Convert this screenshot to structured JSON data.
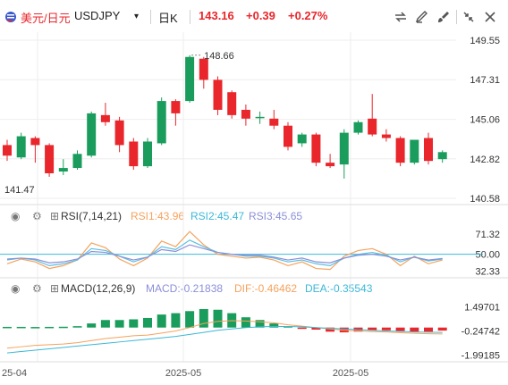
{
  "toolbar": {
    "instrument_name": "美元/日元",
    "symbol": "USDJPY",
    "timeframe": "日K",
    "last_price": "143.16",
    "change": "+0.39",
    "change_pct": "+0.27%",
    "icons": [
      "flag-icon",
      "chevron-down-icon",
      "compare-icon",
      "drawing-icon",
      "brush-icon",
      "shrink-icon",
      "close-icon"
    ]
  },
  "colors": {
    "up": "#e8262b",
    "down": "#1a9d5c",
    "rsi1": "#f5a25d",
    "rsi2": "#5bc0de",
    "rsi3": "#8b8fd8",
    "dif": "#f5a25d",
    "dea": "#3bb8d8",
    "grid": "#eeeeee"
  },
  "chart_data": [
    {
      "type": "candlestick",
      "title": "",
      "x_ticks": [
        "25-04",
        "2025-05",
        "2025-05"
      ],
      "y_ticks": [
        "149.55",
        "147.31",
        "145.06",
        "142.82",
        "140.58"
      ],
      "ylim": [
        140.58,
        149.55
      ],
      "annotations": {
        "high_label": "148.66",
        "low_label": "141.47"
      },
      "candles": [
        {
          "o": 143.6,
          "h": 143.9,
          "l": 142.7,
          "c": 143.0
        },
        {
          "o": 142.9,
          "h": 144.3,
          "l": 142.8,
          "c": 144.1
        },
        {
          "o": 144.0,
          "h": 144.1,
          "l": 142.6,
          "c": 143.6
        },
        {
          "o": 143.6,
          "h": 143.7,
          "l": 141.8,
          "c": 142.0
        },
        {
          "o": 142.1,
          "h": 142.8,
          "l": 141.9,
          "c": 142.3
        },
        {
          "o": 142.3,
          "h": 143.3,
          "l": 142.2,
          "c": 143.1
        },
        {
          "o": 143.0,
          "h": 145.5,
          "l": 142.9,
          "c": 145.4
        },
        {
          "o": 145.3,
          "h": 146.0,
          "l": 144.7,
          "c": 144.9
        },
        {
          "o": 145.0,
          "h": 145.2,
          "l": 143.2,
          "c": 143.6
        },
        {
          "o": 143.8,
          "h": 144.0,
          "l": 142.2,
          "c": 142.4
        },
        {
          "o": 142.4,
          "h": 144.0,
          "l": 142.3,
          "c": 143.8
        },
        {
          "o": 143.7,
          "h": 146.3,
          "l": 143.6,
          "c": 146.1
        },
        {
          "o": 146.1,
          "h": 146.2,
          "l": 144.7,
          "c": 145.4
        },
        {
          "o": 146.1,
          "h": 148.7,
          "l": 146.0,
          "c": 148.6
        },
        {
          "o": 148.5,
          "h": 148.6,
          "l": 146.8,
          "c": 147.3
        },
        {
          "o": 147.3,
          "h": 147.5,
          "l": 145.3,
          "c": 145.6
        },
        {
          "o": 146.6,
          "h": 146.7,
          "l": 145.1,
          "c": 145.3
        },
        {
          "o": 145.6,
          "h": 145.9,
          "l": 144.7,
          "c": 145.1
        },
        {
          "o": 145.2,
          "h": 145.5,
          "l": 144.8,
          "c": 145.2
        },
        {
          "o": 145.1,
          "h": 145.6,
          "l": 144.5,
          "c": 144.7
        },
        {
          "o": 144.7,
          "h": 144.9,
          "l": 143.3,
          "c": 143.5
        },
        {
          "o": 143.7,
          "h": 144.3,
          "l": 143.5,
          "c": 144.2
        },
        {
          "o": 144.2,
          "h": 144.3,
          "l": 142.4,
          "c": 142.6
        },
        {
          "o": 142.6,
          "h": 143.1,
          "l": 142.3,
          "c": 142.4
        },
        {
          "o": 142.5,
          "h": 144.5,
          "l": 141.7,
          "c": 144.3
        },
        {
          "o": 144.3,
          "h": 145.0,
          "l": 144.2,
          "c": 144.9
        },
        {
          "o": 145.1,
          "h": 146.5,
          "l": 144.1,
          "c": 144.2
        },
        {
          "o": 144.2,
          "h": 144.5,
          "l": 143.8,
          "c": 144.0
        },
        {
          "o": 144.0,
          "h": 144.1,
          "l": 142.4,
          "c": 142.6
        },
        {
          "o": 142.6,
          "h": 143.9,
          "l": 142.5,
          "c": 143.9
        },
        {
          "o": 144.0,
          "h": 144.3,
          "l": 142.5,
          "c": 142.7
        },
        {
          "o": 142.8,
          "h": 143.3,
          "l": 142.6,
          "c": 143.2
        }
      ]
    },
    {
      "type": "line",
      "title": "RSI(7,14,21)",
      "y_ticks": [
        "71.32",
        "50.00",
        "32.33"
      ],
      "ylim": [
        28,
        78
      ],
      "reference_line": 50,
      "legend": [
        {
          "label": "RSI1:43.96",
          "color": "#f5a25d"
        },
        {
          "label": "RSI2:45.47",
          "color": "#5bc0de"
        },
        {
          "label": "RSI3:45.65",
          "color": "#8b8fd8"
        }
      ],
      "series": [
        {
          "name": "RSI1",
          "color": "#f5a25d",
          "values": [
            40,
            45,
            42,
            35,
            38,
            44,
            62,
            57,
            45,
            38,
            46,
            64,
            58,
            74,
            60,
            50,
            48,
            46,
            47,
            44,
            38,
            42,
            35,
            34,
            48,
            54,
            56,
            50,
            38,
            48,
            40,
            44
          ]
        },
        {
          "name": "RSI2",
          "color": "#5bc0de",
          "values": [
            44,
            46,
            44,
            38,
            40,
            44,
            56,
            54,
            48,
            42,
            47,
            58,
            55,
            65,
            58,
            52,
            50,
            48,
            48,
            46,
            42,
            44,
            40,
            38,
            46,
            50,
            52,
            49,
            42,
            47,
            43,
            45
          ]
        },
        {
          "name": "RSI3",
          "color": "#8b8fd8",
          "values": [
            45,
            46,
            45,
            41,
            42,
            45,
            53,
            52,
            48,
            44,
            47,
            55,
            53,
            60,
            56,
            52,
            50,
            49,
            49,
            47,
            44,
            46,
            42,
            41,
            46,
            49,
            50,
            48,
            44,
            47,
            44,
            45.65
          ]
        }
      ]
    },
    {
      "type": "bar",
      "title": "MACD(12,26,9)",
      "y_ticks": [
        "1.49701",
        "-0.24742",
        "-1.99185"
      ],
      "ylim": [
        -2.3,
        2.0
      ],
      "legend": [
        {
          "label": "MACD:-0.21838",
          "color": "#8b8fd8"
        },
        {
          "label": "DIF:-0.46462",
          "color": "#f5a25d"
        },
        {
          "label": "DEA:-0.35543",
          "color": "#3bb8d8"
        }
      ],
      "histogram": [
        0.05,
        0.05,
        0.04,
        0.05,
        0.06,
        0.1,
        0.3,
        0.55,
        0.55,
        0.6,
        0.7,
        0.95,
        1.05,
        1.2,
        1.35,
        1.3,
        1.05,
        0.75,
        0.55,
        0.3,
        0.1,
        -0.05,
        -0.15,
        -0.3,
        -0.35,
        -0.3,
        -0.22,
        -0.2,
        -0.25,
        -0.3,
        -0.3,
        -0.22
      ],
      "dif": [
        -1.5,
        -1.4,
        -1.3,
        -1.25,
        -1.2,
        -1.1,
        -0.95,
        -0.8,
        -0.7,
        -0.6,
        -0.55,
        -0.4,
        -0.25,
        0.0,
        0.3,
        0.45,
        0.5,
        0.48,
        0.42,
        0.35,
        0.2,
        0.1,
        0.0,
        -0.1,
        -0.2,
        -0.25,
        -0.3,
        -0.32,
        -0.38,
        -0.42,
        -0.45,
        -0.46462
      ],
      "dea": [
        -1.85,
        -1.75,
        -1.65,
        -1.55,
        -1.45,
        -1.35,
        -1.25,
        -1.15,
        -1.05,
        -0.95,
        -0.85,
        -0.75,
        -0.65,
        -0.5,
        -0.35,
        -0.2,
        -0.1,
        0.0,
        0.05,
        0.08,
        0.08,
        0.05,
        0.0,
        -0.05,
        -0.1,
        -0.15,
        -0.2,
        -0.25,
        -0.28,
        -0.32,
        -0.34,
        -0.35543
      ]
    }
  ]
}
